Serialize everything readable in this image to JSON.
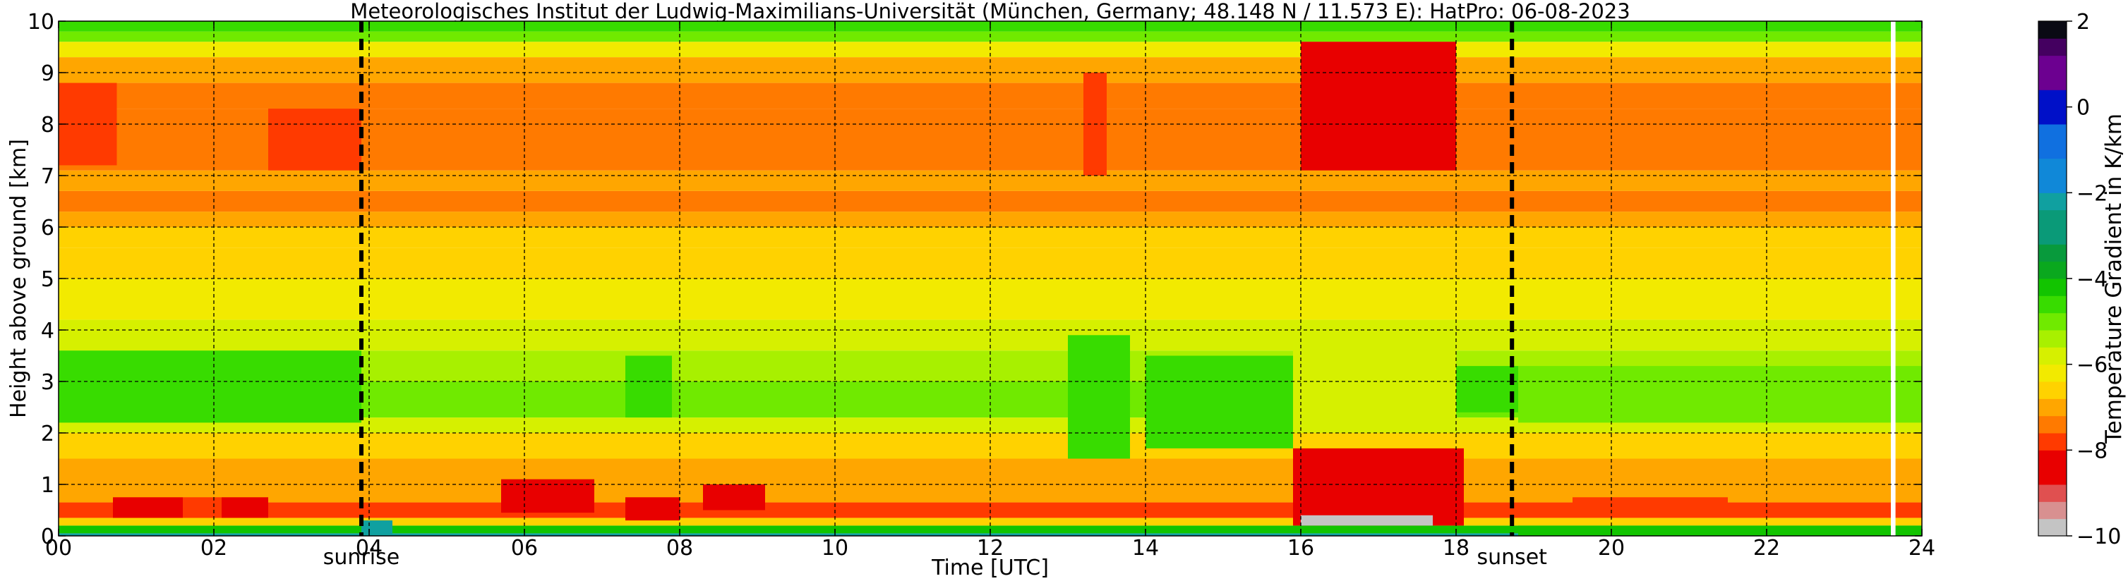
{
  "chart_data": {
    "type": "heatmap",
    "title": "Meteorologisches Institut der Ludwig-Maximilians-Universität (München, Germany; 48.148 N / 11.573 E):    HatPro: 06-08-2023",
    "xlabel": "Time [UTC]",
    "ylabel": "Height above ground [km]",
    "xlim": [
      0,
      24
    ],
    "ylim": [
      0,
      10
    ],
    "x_ticks": [
      0,
      2,
      4,
      6,
      8,
      10,
      12,
      14,
      16,
      18,
      20,
      22,
      24
    ],
    "x_tick_labels": [
      "00",
      "02",
      "04",
      "06",
      "08",
      "10",
      "12",
      "14",
      "16",
      "18",
      "20",
      "22",
      "24"
    ],
    "y_ticks": [
      0,
      1,
      2,
      3,
      4,
      5,
      6,
      7,
      8,
      9,
      10
    ],
    "y_tick_labels": [
      "0",
      "1",
      "2",
      "3",
      "4",
      "5",
      "6",
      "7",
      "8",
      "9",
      "10"
    ],
    "grid": true,
    "events": [
      {
        "label": "sunrise",
        "time": 3.9
      },
      {
        "label": "sunset",
        "time": 18.72
      }
    ],
    "colorbar": {
      "label": "Temperature Gradient in K/km",
      "range": [
        -10,
        2
      ],
      "ticks": [
        -10,
        -8,
        -6,
        -4,
        -2,
        0,
        2
      ],
      "tick_labels": [
        "−10",
        "−8",
        "−6",
        "−4",
        "−2",
        "0",
        "2"
      ],
      "colors": [
        {
          "from": -10.0,
          "to": -9.6,
          "color": "#c4c4c4"
        },
        {
          "from": -9.6,
          "to": -9.2,
          "color": "#d89090"
        },
        {
          "from": -9.2,
          "to": -8.8,
          "color": "#e05050"
        },
        {
          "from": -8.8,
          "to": -8.0,
          "color": "#e80000"
        },
        {
          "from": -8.0,
          "to": -7.6,
          "color": "#ff3a00"
        },
        {
          "from": -7.6,
          "to": -7.2,
          "color": "#ff7a00"
        },
        {
          "from": -7.2,
          "to": -6.8,
          "color": "#ffa600"
        },
        {
          "from": -6.8,
          "to": -6.4,
          "color": "#ffd200"
        },
        {
          "from": -6.4,
          "to": -6.0,
          "color": "#f2ea00"
        },
        {
          "from": -6.0,
          "to": -5.6,
          "color": "#d6f000"
        },
        {
          "from": -5.6,
          "to": -5.2,
          "color": "#a8f000"
        },
        {
          "from": -5.2,
          "to": -4.8,
          "color": "#70ea00"
        },
        {
          "from": -4.8,
          "to": -4.4,
          "color": "#38dc00"
        },
        {
          "from": -4.4,
          "to": -4.0,
          "color": "#12c400"
        },
        {
          "from": -4.0,
          "to": -3.6,
          "color": "#0aa81e"
        },
        {
          "from": -3.6,
          "to": -3.2,
          "color": "#089a3c"
        },
        {
          "from": -3.2,
          "to": -2.4,
          "color": "#0a9a78"
        },
        {
          "from": -2.4,
          "to": -2.0,
          "color": "#10a0a0"
        },
        {
          "from": -2.0,
          "to": -1.2,
          "color": "#1088d8"
        },
        {
          "from": -1.2,
          "to": -0.4,
          "color": "#1070e0"
        },
        {
          "from": -0.4,
          "to": 0.4,
          "color": "#0010c8"
        },
        {
          "from": 0.4,
          "to": 1.2,
          "color": "#6c0090"
        },
        {
          "from": 1.2,
          "to": 1.6,
          "color": "#440060"
        },
        {
          "from": 1.6,
          "to": 2.0,
          "color": "#0a0a14"
        }
      ]
    },
    "layers": [
      {
        "from": 0.0,
        "to": 0.05,
        "value": -2.2
      },
      {
        "from": 0.05,
        "to": 0.2,
        "value": -4.4
      },
      {
        "from": 0.2,
        "to": 0.35,
        "value": -6.6
      },
      {
        "from": 0.35,
        "to": 0.65,
        "value": -7.8
      },
      {
        "from": 0.65,
        "to": 1.0,
        "value": -7.2
      },
      {
        "from": 1.0,
        "to": 1.5,
        "value": -6.9
      },
      {
        "from": 1.5,
        "to": 2.0,
        "value": -6.5
      },
      {
        "from": 2.0,
        "to": 2.3,
        "value": -5.8
      },
      {
        "from": 2.3,
        "to": 3.0,
        "value": -5.1
      },
      {
        "from": 3.0,
        "to": 3.6,
        "value": -5.6
      },
      {
        "from": 3.6,
        "to": 4.2,
        "value": -5.9
      },
      {
        "from": 4.2,
        "to": 5.0,
        "value": -6.2
      },
      {
        "from": 5.0,
        "to": 5.6,
        "value": -6.5
      },
      {
        "from": 5.6,
        "to": 6.0,
        "value": -6.7
      },
      {
        "from": 6.0,
        "to": 6.3,
        "value": -7.0
      },
      {
        "from": 6.3,
        "to": 6.7,
        "value": -7.4
      },
      {
        "from": 6.7,
        "to": 7.1,
        "value": -7.1
      },
      {
        "from": 7.1,
        "to": 8.3,
        "value": -7.6
      },
      {
        "from": 8.3,
        "to": 8.8,
        "value": -7.4
      },
      {
        "from": 8.8,
        "to": 9.3,
        "value": -6.9
      },
      {
        "from": 9.3,
        "to": 9.6,
        "value": -6.2
      },
      {
        "from": 9.6,
        "to": 9.8,
        "value": -5.2
      },
      {
        "from": 9.8,
        "to": 10.0,
        "value": -4.6
      }
    ],
    "features": [
      {
        "t0": 0.0,
        "t1": 0.75,
        "h0": 7.2,
        "h1": 8.8,
        "value": -7.8
      },
      {
        "t0": 2.7,
        "t1": 3.9,
        "h0": 7.1,
        "h1": 8.3,
        "value": -7.8
      },
      {
        "t0": 0.0,
        "t1": 3.9,
        "h0": 2.2,
        "h1": 3.6,
        "value": -4.8
      },
      {
        "t0": 0.7,
        "t1": 1.6,
        "h0": 0.35,
        "h1": 0.75,
        "value": -8.5
      },
      {
        "t0": 1.6,
        "t1": 2.1,
        "h0": 0.35,
        "h1": 0.75,
        "value": -7.8
      },
      {
        "t0": 2.1,
        "t1": 2.7,
        "h0": 0.35,
        "h1": 0.75,
        "value": -8.5
      },
      {
        "t0": 3.9,
        "t1": 4.3,
        "h0": 0.0,
        "h1": 0.3,
        "value": -2.2
      },
      {
        "t0": 5.7,
        "t1": 6.9,
        "h0": 0.45,
        "h1": 1.1,
        "value": -8.3
      },
      {
        "t0": 7.3,
        "t1": 7.9,
        "h0": 2.3,
        "h1": 3.5,
        "value": -4.8
      },
      {
        "t0": 7.3,
        "t1": 8.0,
        "h0": 0.3,
        "h1": 0.75,
        "value": -8.5
      },
      {
        "t0": 8.3,
        "t1": 9.1,
        "h0": 0.5,
        "h1": 1.0,
        "value": -8.2
      },
      {
        "t0": 13.0,
        "t1": 13.8,
        "h0": 1.5,
        "h1": 3.9,
        "value": -4.8
      },
      {
        "t0": 13.2,
        "t1": 13.5,
        "h0": 7.0,
        "h1": 9.0,
        "value": -7.9
      },
      {
        "t0": 14.0,
        "t1": 15.9,
        "h0": 1.7,
        "h1": 3.5,
        "value": -4.8
      },
      {
        "t0": 15.9,
        "t1": 18.0,
        "h0": 2.0,
        "h1": 3.8,
        "value": -5.8
      },
      {
        "t0": 16.0,
        "t1": 18.0,
        "h0": 7.1,
        "h1": 9.6,
        "value": -8.2
      },
      {
        "t0": 15.9,
        "t1": 18.1,
        "h0": 0.2,
        "h1": 1.7,
        "value": -8.5
      },
      {
        "t0": 16.0,
        "t1": 17.7,
        "h0": 0.2,
        "h1": 0.4,
        "value": -9.8
      },
      {
        "t0": 18.0,
        "t1": 18.8,
        "h0": 2.4,
        "h1": 3.3,
        "value": -4.8
      },
      {
        "t0": 18.8,
        "t1": 24.0,
        "h0": 2.2,
        "h1": 3.3,
        "value": -5.0
      },
      {
        "t0": 18.8,
        "t1": 24.0,
        "h0": 0.0,
        "h1": 0.2,
        "value": -4.4
      },
      {
        "t0": 19.5,
        "t1": 21.5,
        "h0": 0.4,
        "h1": 0.75,
        "value": -7.8
      },
      {
        "t0": 23.6,
        "t1": 23.66,
        "h0": 0.0,
        "h1": 10.0,
        "value": 2.5
      }
    ]
  }
}
